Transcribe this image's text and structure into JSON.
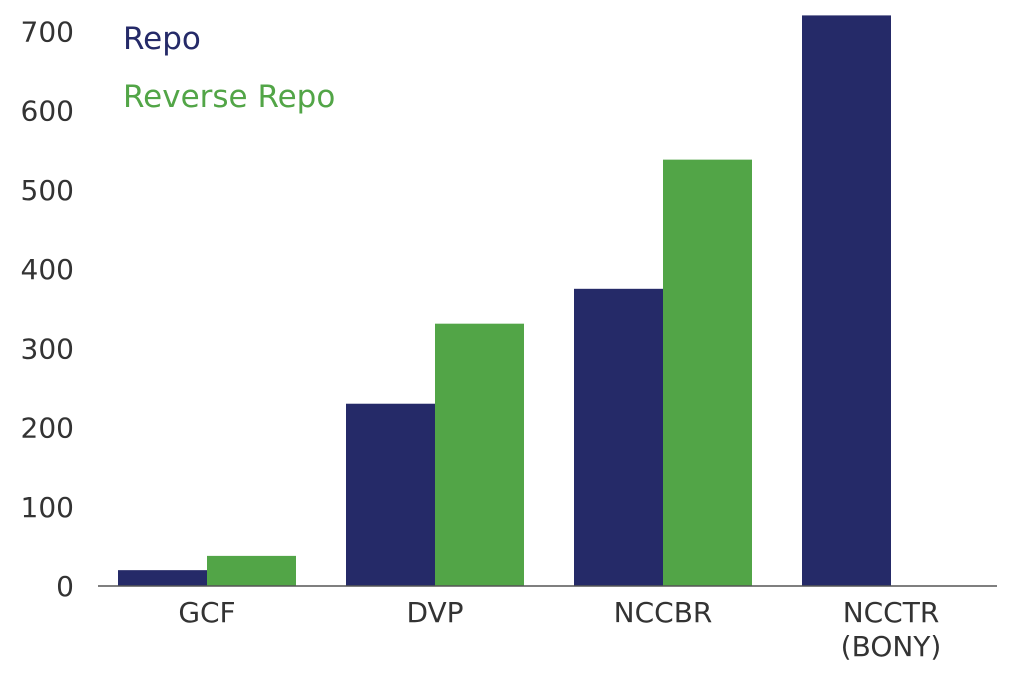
{
  "chart_data": {
    "type": "bar",
    "categories": [
      [
        "GCF"
      ],
      [
        "DVP"
      ],
      [
        "NCCBR"
      ],
      [
        "NCCTR",
        "(BONY)"
      ]
    ],
    "series": [
      {
        "name": "Repo",
        "color": "#252a68",
        "values": [
          20,
          230,
          375,
          720
        ]
      },
      {
        "name": "Reverse Repo",
        "color": "#52a547",
        "values": [
          38,
          331,
          538,
          null
        ]
      }
    ],
    "yticks": [
      0,
      100,
      200,
      300,
      400,
      500,
      600,
      700
    ],
    "ylim": [
      0,
      725
    ],
    "grid": false,
    "legend_position": "top-left"
  }
}
